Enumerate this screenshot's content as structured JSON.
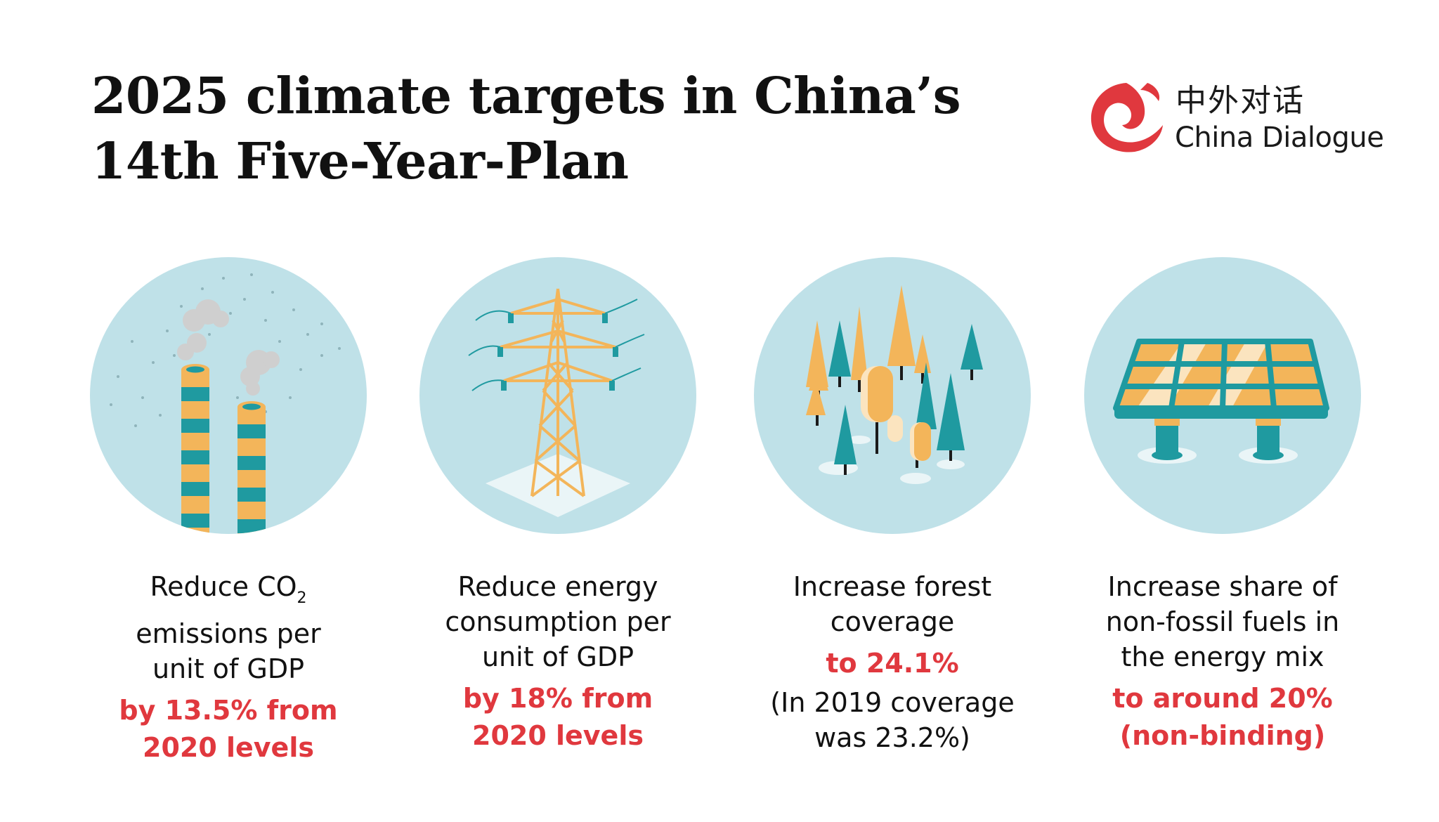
{
  "title": {
    "line1": "2025 climate targets in China’s",
    "line2": "14th Five-Year-Plan"
  },
  "logo": {
    "chinese": "中外对话",
    "english": "China Dialogue"
  },
  "colors": {
    "accent_red": "#e0383e",
    "circle_bg": "#bfe1e8",
    "yellow": "#f3b55a",
    "teal": "#1f9aa0",
    "cream": "#fbe4bf"
  },
  "targets": [
    {
      "icon": "smokestack-icon",
      "desc_line1_main": "Reduce CO",
      "desc_line1_sub": "2",
      "desc_line2": "emissions per",
      "desc_line3": "unit of GDP",
      "highlight_line1": "by 13.5% from",
      "highlight_line2": "2020 levels"
    },
    {
      "icon": "power-pylon-icon",
      "desc_line1": "Reduce energy",
      "desc_line2": "consumption per",
      "desc_line3": "unit of GDP",
      "highlight_line1": "by 18% from",
      "highlight_line2": "2020 levels"
    },
    {
      "icon": "forest-icon",
      "desc_line1": "Increase forest",
      "desc_line2": "coverage",
      "highlight_line1": "to 24.1%",
      "note_line1": "(In 2019 coverage",
      "note_line2": "was 23.2%)"
    },
    {
      "icon": "solar-panel-icon",
      "desc_line1": "Increase share of",
      "desc_line2": "non-fossil fuels in",
      "desc_line3": "the energy mix",
      "highlight_line1": "to around 20%",
      "highlight_line2": "(non-binding)"
    }
  ]
}
